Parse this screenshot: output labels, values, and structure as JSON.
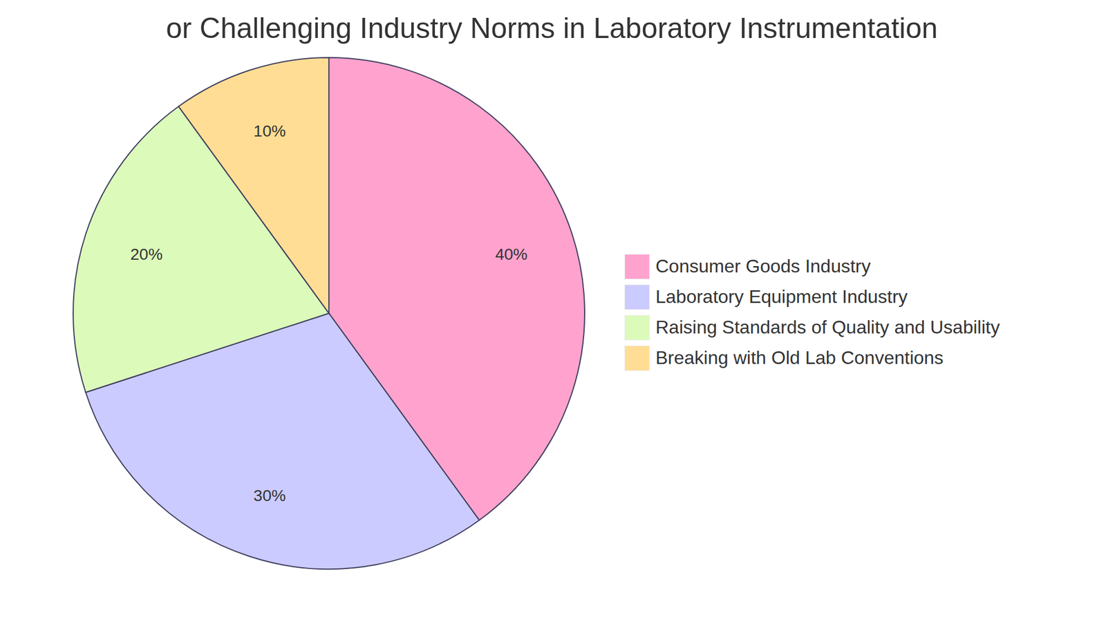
{
  "chart_data": {
    "type": "pie",
    "title": "or Challenging Industry Norms in Laboratory Instrumentation",
    "categories": [
      "Consumer Goods Industry",
      "Laboratory Equipment Industry",
      "Raising Standards of Quality and Usability",
      "Breaking with Old Lab Conventions"
    ],
    "values": [
      40,
      30,
      20,
      10
    ],
    "value_labels": [
      "40%",
      "30%",
      "20%",
      "10%"
    ],
    "colors": [
      "#ffa3ce",
      "#cbcbff",
      "#dcfaba",
      "#ffdd94"
    ],
    "data_labels": true,
    "legend": "right"
  }
}
